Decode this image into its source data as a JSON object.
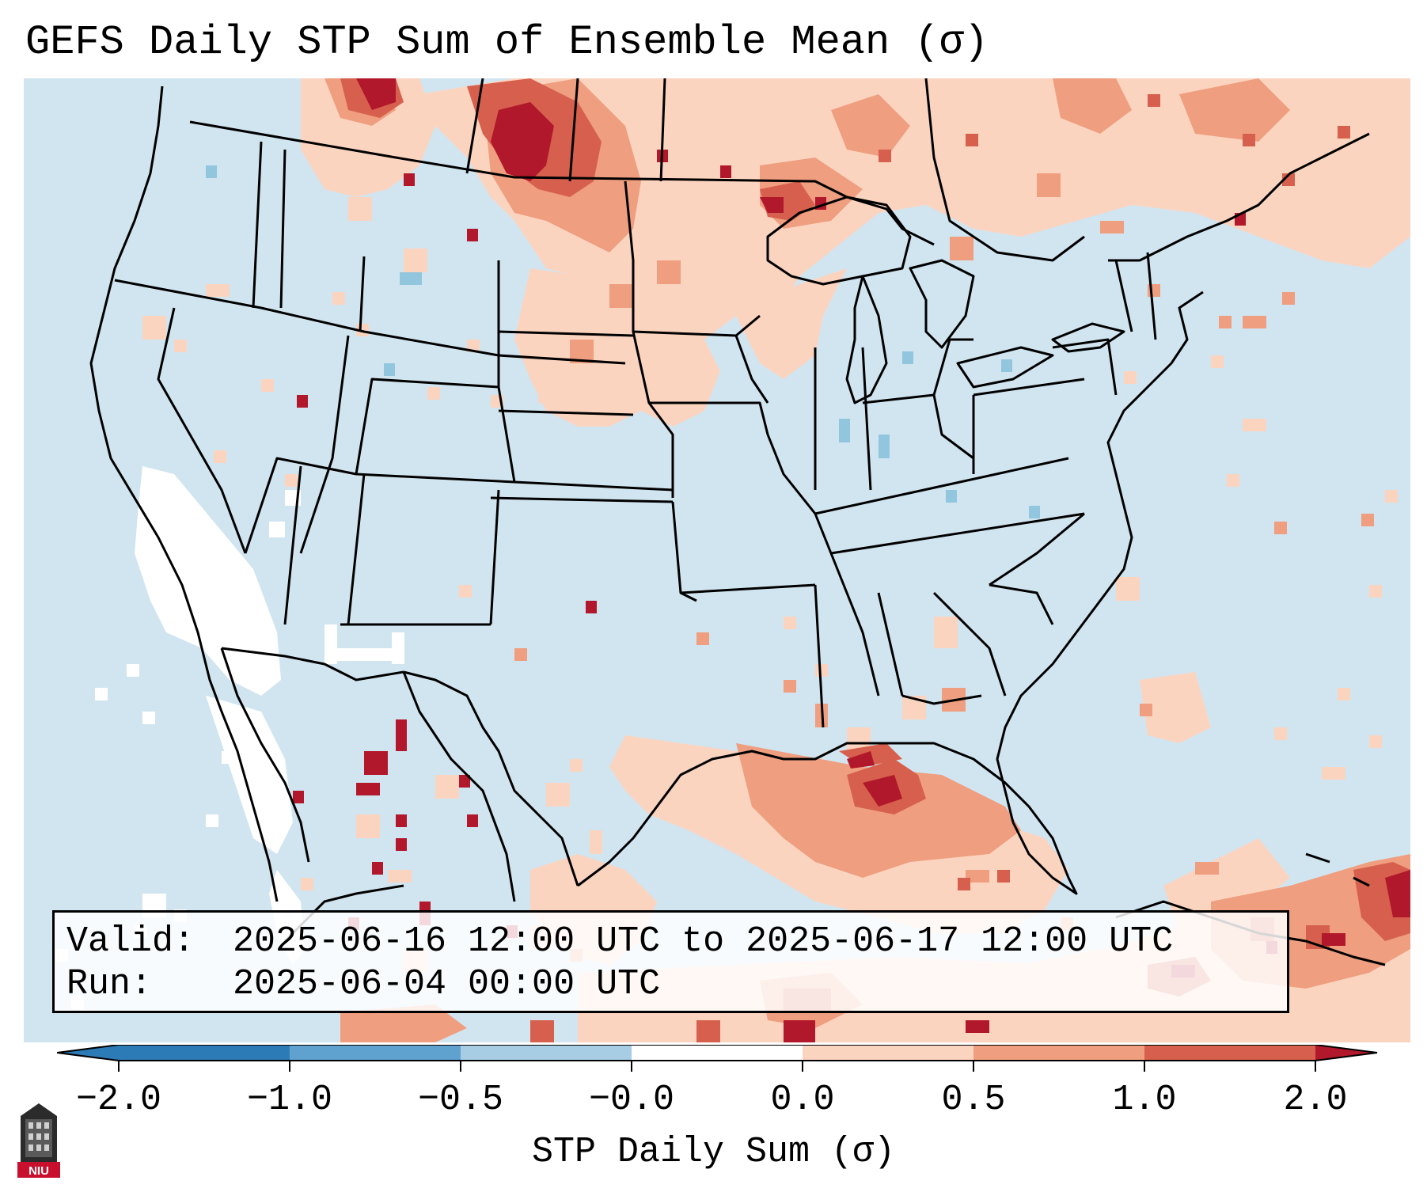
{
  "title": "GEFS Daily STP Sum of Ensemble Mean (σ)",
  "info": {
    "valid_label": "Valid:",
    "valid_value": "2025-06-16 12:00 UTC to 2025-06-17 12:00 UTC",
    "run_label": "Run:",
    "run_value": "2025-06-04 00:00 UTC"
  },
  "colorbar": {
    "label": "STP Daily Sum (σ)",
    "ticks": [
      "−2.0",
      "−1.0",
      "−0.5",
      "−0.0",
      "0.0",
      "0.5",
      "1.0",
      "2.0"
    ],
    "colors": [
      "#2d7bb6",
      "#5fa2cf",
      "#a6cde3",
      "#d1e5f0",
      "#ffffff",
      "#fbd4c0",
      "#ef9e7f",
      "#d6604d",
      "#b2182b"
    ]
  },
  "colors": {
    "background_ocean": "#d1e5f0",
    "neutral": "#ffffff",
    "light_positive": "#fbd4c0",
    "mid_positive": "#ef9e7f",
    "high_positive": "#d6604d",
    "max_positive": "#b2182b",
    "light_negative": "#a6cde3"
  },
  "logo": {
    "text": "NIU"
  }
}
